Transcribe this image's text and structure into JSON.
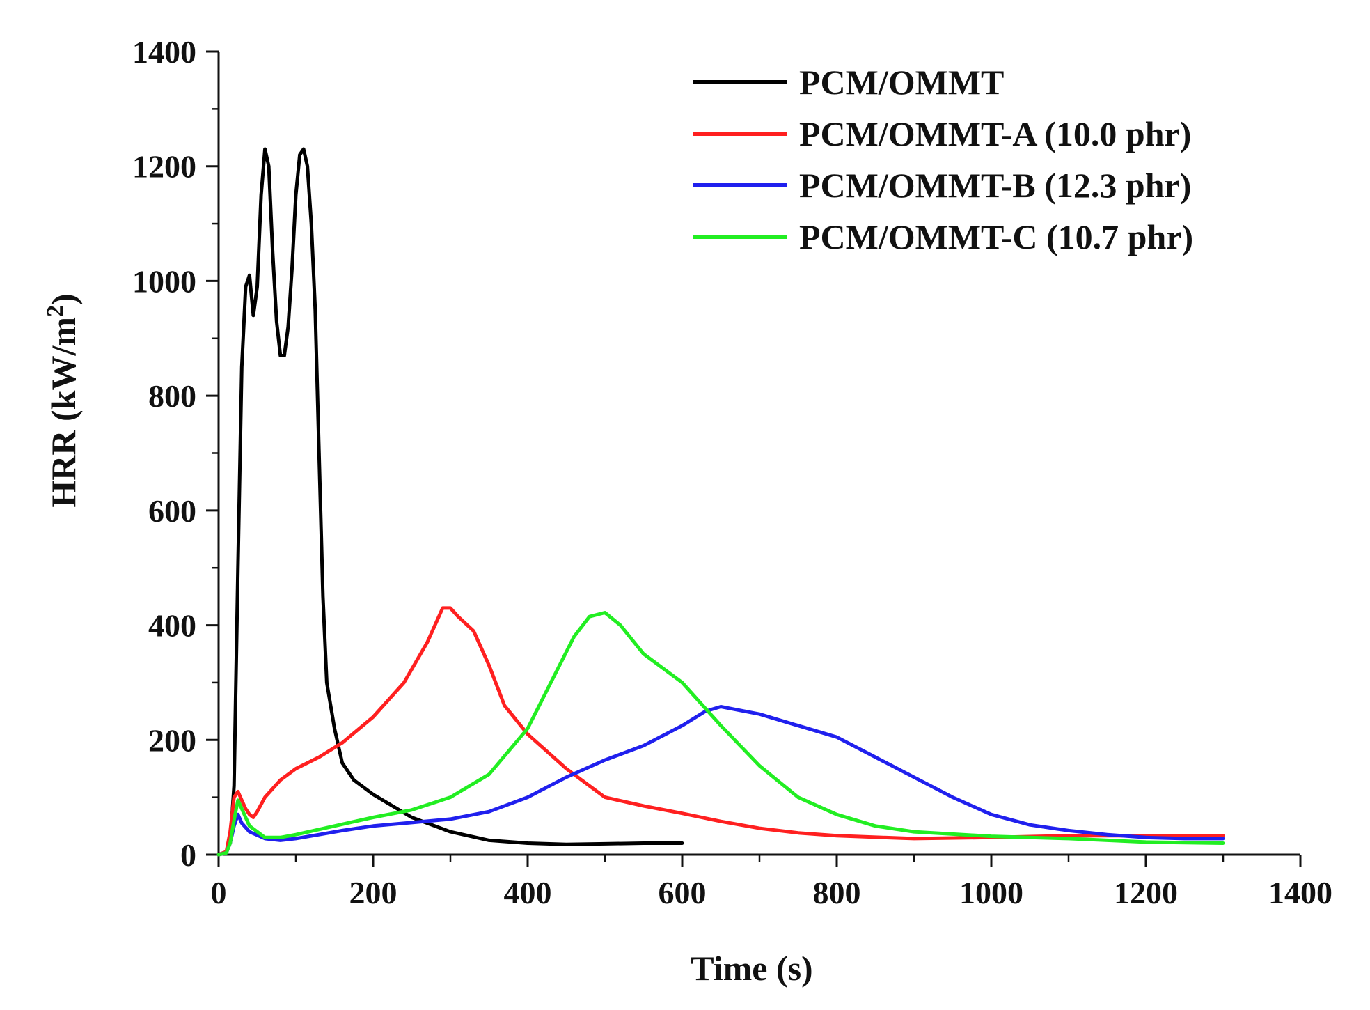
{
  "chart_data": {
    "type": "line",
    "title": "",
    "xlabel": "Time (s)",
    "ylabel_main": "HRR (kW/m",
    "ylabel_sup": "2",
    "ylabel_close": ")",
    "xlim": [
      0,
      1400
    ],
    "ylim": [
      0,
      1400
    ],
    "x_ticks": [
      0,
      200,
      400,
      600,
      800,
      1000,
      1200,
      1400
    ],
    "y_ticks": [
      0,
      200,
      400,
      600,
      800,
      1000,
      1200,
      1400
    ],
    "x_tick_labels": [
      "0",
      "200",
      "400",
      "600",
      "800",
      "1000",
      "1200",
      "1400"
    ],
    "y_tick_labels": [
      "0",
      "200",
      "400",
      "600",
      "800",
      "1000",
      "1200",
      "1400"
    ],
    "legend_position": "top-right",
    "grid": false,
    "series": [
      {
        "name": "PCM/OMMT",
        "color": "#000000",
        "points": [
          [
            0,
            0
          ],
          [
            10,
            5
          ],
          [
            15,
            20
          ],
          [
            20,
            120
          ],
          [
            25,
            500
          ],
          [
            30,
            850
          ],
          [
            35,
            990
          ],
          [
            40,
            1010
          ],
          [
            45,
            940
          ],
          [
            50,
            990
          ],
          [
            55,
            1150
          ],
          [
            60,
            1230
          ],
          [
            65,
            1200
          ],
          [
            70,
            1050
          ],
          [
            75,
            930
          ],
          [
            80,
            870
          ],
          [
            85,
            870
          ],
          [
            90,
            920
          ],
          [
            95,
            1020
          ],
          [
            100,
            1150
          ],
          [
            105,
            1220
          ],
          [
            110,
            1230
          ],
          [
            115,
            1200
          ],
          [
            120,
            1100
          ],
          [
            125,
            950
          ],
          [
            130,
            700
          ],
          [
            135,
            450
          ],
          [
            140,
            300
          ],
          [
            150,
            220
          ],
          [
            160,
            160
          ],
          [
            175,
            130
          ],
          [
            200,
            105
          ],
          [
            250,
            65
          ],
          [
            300,
            40
          ],
          [
            350,
            25
          ],
          [
            400,
            20
          ],
          [
            450,
            18
          ],
          [
            500,
            19
          ],
          [
            550,
            20
          ],
          [
            600,
            20
          ]
        ]
      },
      {
        "name": "PCM/OMMT-A (10.0 phr)",
        "color": "#ff2020",
        "points": [
          [
            0,
            0
          ],
          [
            10,
            5
          ],
          [
            15,
            40
          ],
          [
            20,
            100
          ],
          [
            25,
            110
          ],
          [
            30,
            95
          ],
          [
            35,
            80
          ],
          [
            40,
            70
          ],
          [
            45,
            65
          ],
          [
            50,
            75
          ],
          [
            60,
            100
          ],
          [
            80,
            130
          ],
          [
            100,
            150
          ],
          [
            130,
            170
          ],
          [
            160,
            195
          ],
          [
            200,
            240
          ],
          [
            240,
            300
          ],
          [
            270,
            370
          ],
          [
            290,
            430
          ],
          [
            300,
            430
          ],
          [
            310,
            415
          ],
          [
            330,
            390
          ],
          [
            350,
            330
          ],
          [
            370,
            260
          ],
          [
            400,
            210
          ],
          [
            450,
            150
          ],
          [
            480,
            120
          ],
          [
            500,
            100
          ],
          [
            550,
            85
          ],
          [
            600,
            72
          ],
          [
            650,
            58
          ],
          [
            700,
            46
          ],
          [
            750,
            38
          ],
          [
            800,
            33
          ],
          [
            900,
            28
          ],
          [
            1000,
            30
          ],
          [
            1100,
            33
          ],
          [
            1200,
            33
          ],
          [
            1300,
            33
          ]
        ]
      },
      {
        "name": "PCM/OMMT-B (12.3 phr)",
        "color": "#2020ee",
        "points": [
          [
            0,
            0
          ],
          [
            10,
            3
          ],
          [
            15,
            20
          ],
          [
            20,
            50
          ],
          [
            25,
            70
          ],
          [
            30,
            55
          ],
          [
            40,
            40
          ],
          [
            60,
            28
          ],
          [
            80,
            25
          ],
          [
            100,
            28
          ],
          [
            130,
            35
          ],
          [
            160,
            42
          ],
          [
            200,
            50
          ],
          [
            250,
            56
          ],
          [
            300,
            62
          ],
          [
            350,
            75
          ],
          [
            400,
            100
          ],
          [
            450,
            135
          ],
          [
            500,
            165
          ],
          [
            550,
            190
          ],
          [
            600,
            225
          ],
          [
            630,
            250
          ],
          [
            650,
            258
          ],
          [
            700,
            245
          ],
          [
            750,
            225
          ],
          [
            800,
            205
          ],
          [
            850,
            170
          ],
          [
            900,
            135
          ],
          [
            950,
            100
          ],
          [
            1000,
            70
          ],
          [
            1050,
            52
          ],
          [
            1100,
            42
          ],
          [
            1150,
            35
          ],
          [
            1200,
            30
          ],
          [
            1250,
            28
          ],
          [
            1300,
            28
          ]
        ]
      },
      {
        "name": "PCM/OMMT-C (10.7 phr)",
        "color": "#22ee22",
        "points": [
          [
            0,
            0
          ],
          [
            10,
            3
          ],
          [
            15,
            20
          ],
          [
            20,
            60
          ],
          [
            25,
            95
          ],
          [
            30,
            80
          ],
          [
            40,
            50
          ],
          [
            60,
            30
          ],
          [
            80,
            30
          ],
          [
            100,
            35
          ],
          [
            150,
            50
          ],
          [
            200,
            65
          ],
          [
            250,
            78
          ],
          [
            300,
            100
          ],
          [
            350,
            140
          ],
          [
            400,
            220
          ],
          [
            430,
            300
          ],
          [
            460,
            380
          ],
          [
            480,
            415
          ],
          [
            500,
            422
          ],
          [
            520,
            400
          ],
          [
            550,
            350
          ],
          [
            600,
            300
          ],
          [
            650,
            225
          ],
          [
            700,
            155
          ],
          [
            750,
            100
          ],
          [
            800,
            70
          ],
          [
            850,
            50
          ],
          [
            900,
            40
          ],
          [
            1000,
            32
          ],
          [
            1100,
            28
          ],
          [
            1200,
            22
          ],
          [
            1300,
            20
          ]
        ]
      }
    ]
  }
}
